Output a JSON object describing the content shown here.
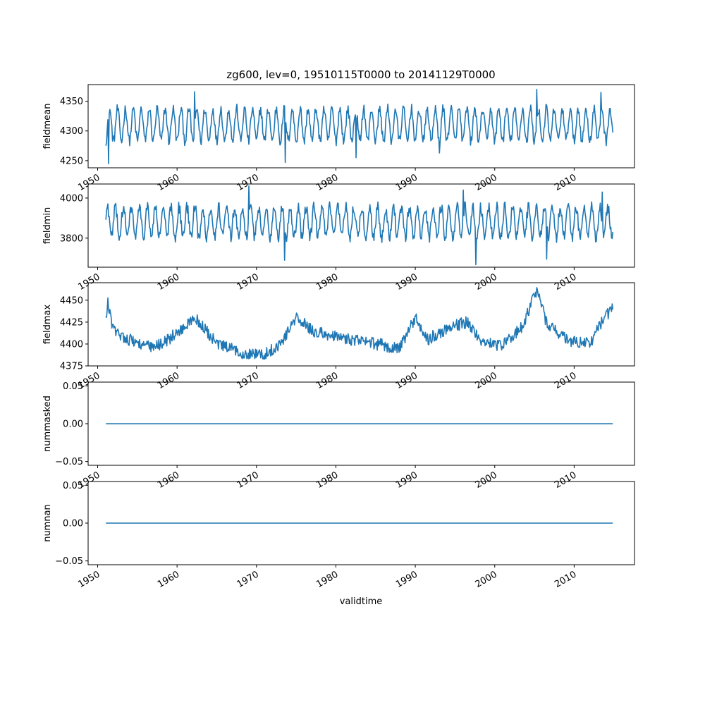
{
  "chart_data": {
    "type": "line",
    "title": "zg600, lev=0, 19510115T0000 to 20141129T0000",
    "xlabel": "validtime",
    "x_range": [
      "1951-01-15",
      "2014-11-29"
    ],
    "xlim": [
      1948.8,
      2017.6
    ],
    "x_ticks": [
      1950,
      1960,
      1970,
      1980,
      1990,
      2000,
      2010
    ],
    "x_tick_labels": [
      "1950",
      "1960",
      "1970",
      "1980",
      "1990",
      "2000",
      "2010"
    ],
    "line_color": "#1f77b4",
    "grid": false,
    "panels": [
      {
        "ylabel": "fieldmean",
        "ylim": [
          4238,
          4378
        ],
        "y_ticks": [
          4250,
          4300,
          4350
        ],
        "y_tick_labels": [
          "4250",
          "4300",
          "4350"
        ],
        "series": {
          "kind": "seasonal",
          "mean": 4310,
          "amp": 27,
          "phase": 0.0,
          "noise": 9,
          "extremes": [
            [
              1951.4,
              4245
            ],
            [
              1973.6,
              4247
            ],
            [
              1982.5,
              4255
            ],
            [
              2005.3,
              4370
            ],
            [
              2013.4,
              4365
            ],
            [
              1962.2,
              4366
            ],
            [
              1993.0,
              4263
            ]
          ]
        }
      },
      {
        "ylabel": "fieldmin",
        "ylim": [
          3655,
          4070
        ],
        "y_ticks": [
          3800,
          4000
        ],
        "y_tick_labels": [
          "3800",
          "4000"
        ],
        "series": {
          "kind": "seasonal",
          "mean": 3880,
          "amp": 75,
          "phase": 0.5,
          "noise": 30,
          "extremes": [
            [
              1969.0,
              4060
            ],
            [
              1973.5,
              3690
            ],
            [
              1997.6,
              3668
            ],
            [
              2006.5,
              3695
            ],
            [
              1996.0,
              4040
            ],
            [
              2013.5,
              4030
            ]
          ]
        }
      },
      {
        "ylabel": "fieldmax",
        "ylim": [
          4375,
          4470
        ],
        "y_ticks": [
          4375,
          4400,
          4425,
          4450
        ],
        "y_tick_labels": [
          "4375",
          "4400",
          "4425",
          "4450"
        ],
        "series": {
          "kind": "lowfreq",
          "knots": [
            [
              1951.0,
              4425
            ],
            [
              1951.3,
              4447
            ],
            [
              1952.0,
              4415
            ],
            [
              1954.0,
              4405
            ],
            [
              1957.0,
              4395
            ],
            [
              1960.0,
              4412
            ],
            [
              1962.3,
              4430
            ],
            [
              1965.0,
              4400
            ],
            [
              1968.0,
              4390
            ],
            [
              1971.0,
              4388
            ],
            [
              1973.0,
              4400
            ],
            [
              1975.0,
              4430
            ],
            [
              1977.0,
              4415
            ],
            [
              1980.0,
              4408
            ],
            [
              1984.0,
              4402
            ],
            [
              1988.0,
              4395
            ],
            [
              1990.0,
              4430
            ],
            [
              1991.5,
              4405
            ],
            [
              1994.0,
              4418
            ],
            [
              1996.5,
              4425
            ],
            [
              1998.5,
              4402
            ],
            [
              2001.0,
              4398
            ],
            [
              2003.5,
              4420
            ],
            [
              2005.3,
              4462
            ],
            [
              2006.5,
              4425
            ],
            [
              2009.0,
              4405
            ],
            [
              2012.0,
              4400
            ],
            [
              2013.5,
              4425
            ],
            [
              2014.9,
              4442
            ]
          ],
          "noise": 7
        }
      },
      {
        "ylabel": "nummasked",
        "ylim": [
          -0.055,
          0.055
        ],
        "y_ticks": [
          -0.05,
          0.0,
          0.05
        ],
        "y_tick_labels": [
          "−0.05",
          "0.00",
          "0.05"
        ],
        "series": {
          "kind": "constant",
          "value": 0
        }
      },
      {
        "ylabel": "numnan",
        "ylim": [
          -0.055,
          0.055
        ],
        "y_ticks": [
          -0.05,
          0.0,
          0.05
        ],
        "y_tick_labels": [
          "−0.05",
          "0.00",
          "0.05"
        ],
        "series": {
          "kind": "constant",
          "value": 0
        }
      }
    ]
  }
}
